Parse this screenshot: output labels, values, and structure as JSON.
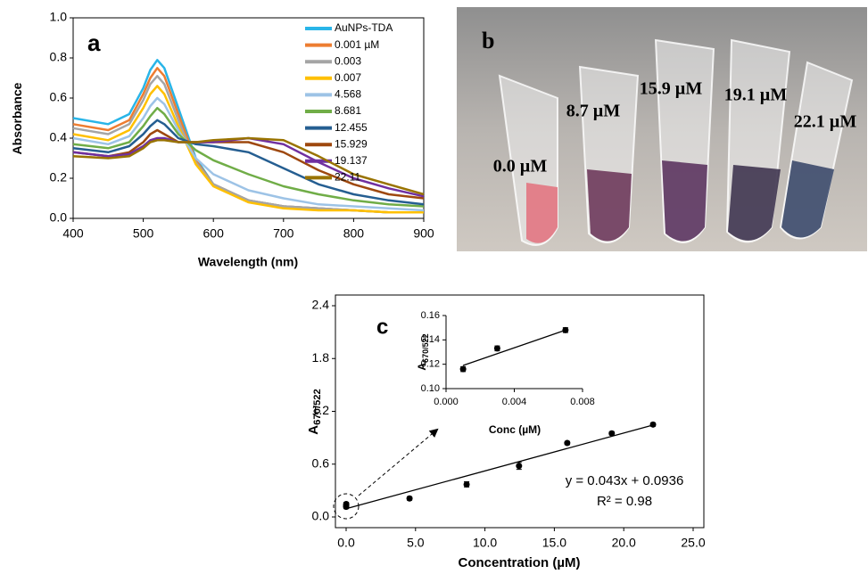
{
  "chart_data": [
    {
      "type": "line",
      "label": "a",
      "xlabel": "Wavelength (nm)",
      "ylabel": "Absorbance",
      "x": [
        400,
        450,
        480,
        500,
        510,
        520,
        530,
        550,
        575,
        600,
        650,
        700,
        750,
        800,
        850,
        900
      ],
      "series": [
        {
          "name": "AuNPs-TDA",
          "color": "#29b5e8",
          "values": [
            0.5,
            0.47,
            0.52,
            0.65,
            0.74,
            0.79,
            0.75,
            0.55,
            0.3,
            0.17,
            0.09,
            0.06,
            0.05,
            0.04,
            0.03,
            0.03
          ]
        },
        {
          "name": "0.001 µM",
          "color": "#ed7d31",
          "values": [
            0.47,
            0.44,
            0.49,
            0.62,
            0.7,
            0.75,
            0.71,
            0.52,
            0.29,
            0.17,
            0.09,
            0.06,
            0.05,
            0.04,
            0.03,
            0.03
          ]
        },
        {
          "name": "0.003",
          "color": "#a5a5a5",
          "values": [
            0.45,
            0.42,
            0.47,
            0.59,
            0.67,
            0.71,
            0.67,
            0.49,
            0.28,
            0.17,
            0.09,
            0.06,
            0.05,
            0.04,
            0.03,
            0.03
          ]
        },
        {
          "name": "0.007",
          "color": "#ffc000",
          "values": [
            0.42,
            0.39,
            0.44,
            0.55,
            0.62,
            0.66,
            0.62,
            0.46,
            0.27,
            0.16,
            0.08,
            0.05,
            0.04,
            0.04,
            0.03,
            0.03
          ]
        },
        {
          "name": "4.568",
          "color": "#9dc3e6",
          "values": [
            0.4,
            0.37,
            0.41,
            0.5,
            0.56,
            0.6,
            0.57,
            0.44,
            0.3,
            0.22,
            0.14,
            0.1,
            0.07,
            0.06,
            0.05,
            0.04
          ]
        },
        {
          "name": "8.681",
          "color": "#70ad47",
          "values": [
            0.37,
            0.35,
            0.38,
            0.46,
            0.51,
            0.55,
            0.52,
            0.42,
            0.34,
            0.29,
            0.22,
            0.16,
            0.12,
            0.09,
            0.07,
            0.06
          ]
        },
        {
          "name": "12.455",
          "color": "#255e91",
          "values": [
            0.35,
            0.33,
            0.36,
            0.42,
            0.46,
            0.49,
            0.47,
            0.4,
            0.37,
            0.36,
            0.33,
            0.25,
            0.17,
            0.12,
            0.09,
            0.07
          ]
        },
        {
          "name": "15.929",
          "color": "#9e480e",
          "values": [
            0.33,
            0.31,
            0.33,
            0.38,
            0.42,
            0.44,
            0.42,
            0.38,
            0.38,
            0.38,
            0.38,
            0.33,
            0.24,
            0.17,
            0.12,
            0.1
          ]
        },
        {
          "name": "19.137",
          "color": "#7030a0",
          "values": [
            0.33,
            0.31,
            0.32,
            0.36,
            0.39,
            0.4,
            0.4,
            0.38,
            0.38,
            0.38,
            0.4,
            0.37,
            0.28,
            0.2,
            0.15,
            0.11
          ]
        },
        {
          "name": "22.11",
          "color": "#997300",
          "values": [
            0.31,
            0.3,
            0.31,
            0.35,
            0.38,
            0.39,
            0.39,
            0.38,
            0.38,
            0.39,
            0.4,
            0.39,
            0.31,
            0.22,
            0.17,
            0.12
          ]
        }
      ],
      "xlim": [
        400,
        900
      ],
      "xticks": [
        400,
        500,
        600,
        700,
        800,
        900
      ],
      "ylim": [
        0,
        1
      ],
      "yticks": [
        {
          "value": 0,
          "label": "0.0"
        },
        0.2,
        0.4,
        0.6,
        0.8,
        {
          "value": 1,
          "label": "1.0"
        }
      ],
      "legend": "upper right"
    },
    {
      "type": "scatter",
      "label": "c",
      "xlabel": "Concentration (µM)",
      "ylabel": "A",
      "ylabel_subscript": "670/522",
      "x": [
        0.001,
        0.003,
        0.007,
        4.568,
        8.681,
        12.455,
        15.929,
        19.137,
        22.11
      ],
      "values": [
        0.115,
        0.132,
        0.147,
        0.21,
        0.37,
        0.58,
        0.84,
        0.95,
        1.05
      ],
      "errors": [
        0.02,
        0.02,
        0.02,
        0.02,
        0.03,
        0.04,
        0.02,
        0.02,
        0.02
      ],
      "color": "#000000",
      "fit": {
        "x": [
          0,
          22.11
        ],
        "values": [
          0.0936,
          1.044
        ]
      },
      "annotations": [
        "y = 0.043x + 0.0936",
        "R² = 0.98"
      ],
      "xlim": [
        0,
        25
      ],
      "xticks": [
        {
          "value": 0,
          "label": "0.0"
        },
        {
          "value": 5,
          "label": "5.0"
        },
        {
          "value": 10,
          "label": "10.0"
        },
        {
          "value": 15,
          "label": "15.0"
        },
        {
          "value": 20,
          "label": "20.0"
        },
        {
          "value": 25,
          "label": "25.0"
        }
      ],
      "ylim": [
        0,
        2.4
      ],
      "yticks": [
        {
          "value": 0,
          "label": "0.0"
        },
        0.6,
        1.2,
        1.8,
        2.4
      ]
    },
    {
      "type": "scatter",
      "xlabel": "Conc (µM)",
      "ylabel": "A",
      "ylabel_subscript": "670/522",
      "x": [
        0.001,
        0.003,
        0.007
      ],
      "values": [
        0.116,
        0.133,
        0.148
      ],
      "errors": [
        0.002,
        0.002,
        0.002
      ],
      "color": "#000000",
      "fit": {
        "x": [
          0.001,
          0.007
        ],
        "values": [
          0.119,
          0.148
        ]
      },
      "xlim": [
        0,
        0.008
      ],
      "xticks": [
        {
          "value": 0,
          "label": "0.000"
        },
        {
          "value": 0.004,
          "label": "0.004"
        },
        {
          "value": 0.008,
          "label": "0.008"
        }
      ],
      "ylim": [
        0.1,
        0.16
      ],
      "yticks": [
        {
          "value": 0.1,
          "label": "0.10"
        },
        0.12,
        0.14,
        0.16
      ]
    }
  ],
  "photo": {
    "label": "b",
    "tube_labels": [
      "0.0 µM",
      "8.7 µM",
      "15.9 µM",
      "19.1 µM",
      "22.1 µM"
    ]
  }
}
